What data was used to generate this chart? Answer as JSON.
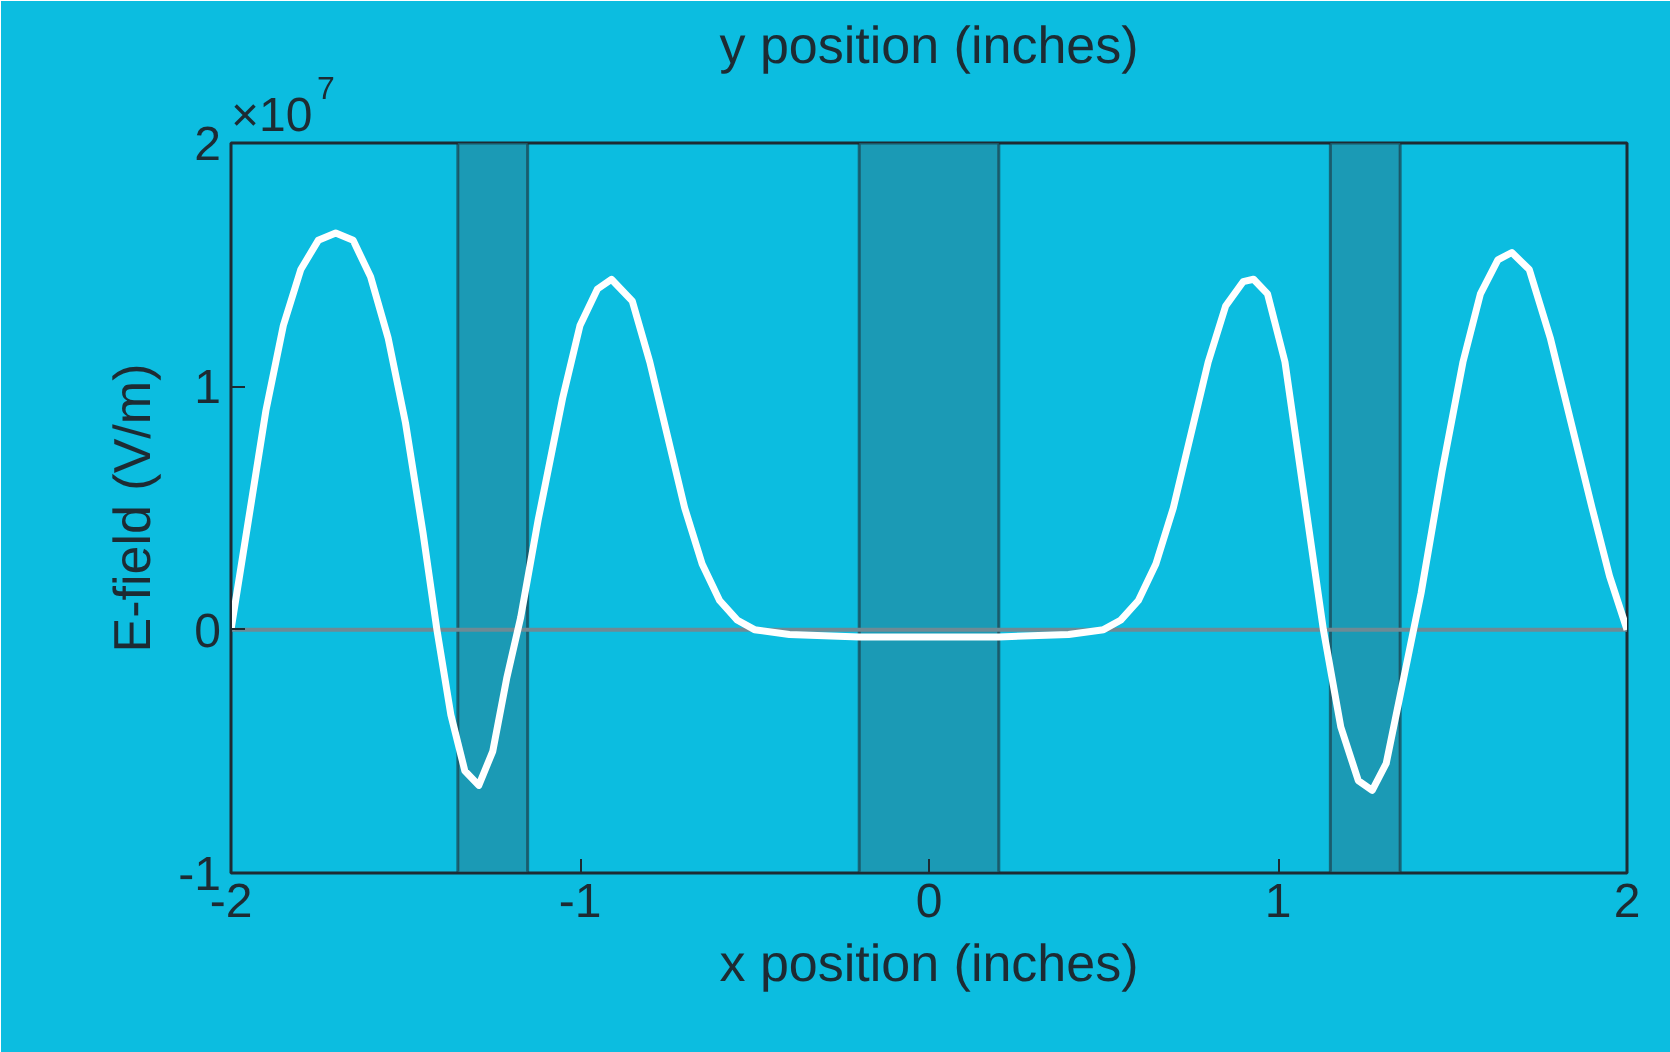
{
  "chart_data": {
    "type": "line",
    "title": "y position (inches)",
    "xlabel": "x position (inches)",
    "ylabel": "E-field (V/m)",
    "annotations": [
      "×10$^{7}$"
    ],
    "x": [
      -2,
      -1.95,
      -1.9,
      -1.85,
      -1.8,
      -1.75,
      -1.7,
      -1.65,
      -1.6,
      -1.55,
      -1.5,
      -1.45,
      -1.41,
      -1.37,
      -1.33,
      -1.29,
      -1.25,
      -1.21,
      -1.17,
      -1.12,
      -1.05,
      -1.0,
      -0.95,
      -0.91,
      -0.85,
      -0.8,
      -0.75,
      -0.7,
      -0.65,
      -0.6,
      -0.55,
      -0.5,
      -0.4,
      -0.2,
      0,
      0.2,
      0.4,
      0.5,
      0.55,
      0.6,
      0.65,
      0.7,
      0.75,
      0.8,
      0.85,
      0.9,
      0.93,
      0.97,
      1.02,
      1.07,
      1.13,
      1.18,
      1.23,
      1.27,
      1.31,
      1.36,
      1.41,
      1.47,
      1.53,
      1.58,
      1.63,
      1.67,
      1.72,
      1.78,
      1.84,
      1.9,
      1.95,
      2.0
    ],
    "series": [
      {
        "color": "#ffffff",
        "values": [
          0,
          0.45,
          0.9,
          1.25,
          1.48,
          1.6,
          1.63,
          1.6,
          1.45,
          1.2,
          0.85,
          0.4,
          0,
          -0.35,
          -0.58,
          -0.64,
          -0.5,
          -0.2,
          0.05,
          0.45,
          0.95,
          1.25,
          1.4,
          1.44,
          1.35,
          1.1,
          0.8,
          0.5,
          0.27,
          0.12,
          0.04,
          0.0,
          -0.02,
          -0.03,
          -0.03,
          -0.03,
          -0.02,
          0.0,
          0.04,
          0.12,
          0.27,
          0.5,
          0.8,
          1.1,
          1.33,
          1.43,
          1.44,
          1.38,
          1.1,
          0.6,
          0,
          -0.4,
          -0.62,
          -0.66,
          -0.55,
          -0.2,
          0.15,
          0.65,
          1.1,
          1.38,
          1.52,
          1.55,
          1.48,
          1.2,
          0.85,
          0.5,
          0.22,
          0
        ]
      }
    ],
    "xlim": [
      -2,
      2
    ],
    "ylim": [
      -1,
      2
    ],
    "xticks": [
      -2,
      -1,
      0,
      1,
      2
    ],
    "yticks": [
      -1,
      0,
      1,
      2
    ],
    "grid": false,
    "marker": "none",
    "line_style": "solid",
    "ref_lines": [
      {
        "axis": "y",
        "value": 0,
        "color": "#6f8a94"
      }
    ],
    "bands": [
      {
        "axis": "x",
        "from": -1.35,
        "to": -1.15,
        "color": "#1b9ab5"
      },
      {
        "axis": "x",
        "from": -0.2,
        "to": 0.2,
        "color": "#1b9ab5"
      },
      {
        "axis": "x",
        "from": 1.15,
        "to": 1.35,
        "color": "#1b9ab5"
      }
    ]
  }
}
